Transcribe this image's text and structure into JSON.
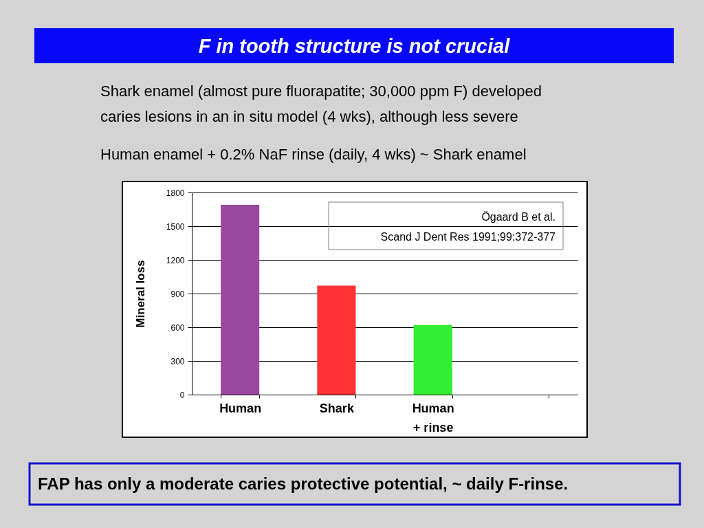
{
  "chart_data": {
    "type": "bar",
    "title": "F in tooth structure is not crucial",
    "ylabel": "Mineral loss",
    "categories": [
      "Human",
      "Shark",
      "Human + rinse",
      null
    ],
    "values": [
      1690,
      970,
      620,
      null
    ],
    "colors": [
      "#9a48a0",
      "#ff3333",
      "#33ee33",
      null
    ],
    "ylim": [
      0,
      1800
    ],
    "yticks": [
      0,
      300,
      600,
      900,
      1200,
      1500,
      1800
    ],
    "grid": "y",
    "annotations": [
      "Shark enamel (almost pure fluorapatite; 30,000 ppm F) developed caries lesions in an in situ model (4 wks), although less severe",
      "Human enamel + 0.2% NaF rinse (daily, 4 wks) ~ Shark enamel",
      "Ögaard B et al.",
      "Scand J Dent Res 1991;99:372-377",
      "FAP has only a moderate caries protective potential, ~ daily F-rinse."
    ]
  }
}
